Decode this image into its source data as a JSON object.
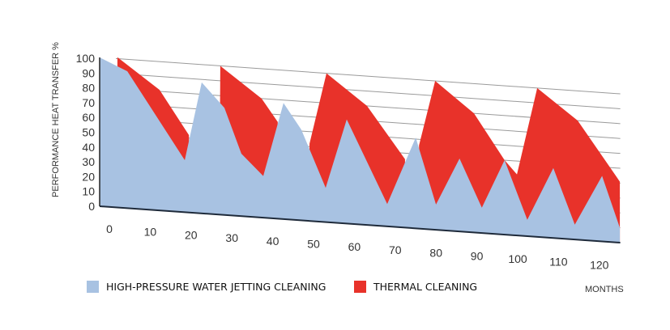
{
  "chart_data": {
    "type": "area",
    "title": "",
    "xlabel": "MONTHS",
    "ylabel": "PERFORMANCE HEAT TRANSFER %",
    "ylim": [
      0,
      100
    ],
    "xlim": [
      0,
      126
    ],
    "x_ticks": [
      0,
      10,
      20,
      30,
      40,
      50,
      60,
      70,
      80,
      90,
      100,
      110,
      120
    ],
    "y_ticks": [
      0,
      10,
      20,
      30,
      40,
      50,
      60,
      70,
      80,
      90,
      100
    ],
    "grid": true,
    "perspective": "3d-tilted",
    "legend_placement": "bottom",
    "series": [
      {
        "name": "THERMAL CLEANING",
        "color": "#e8322a",
        "points": [
          [
            4.2,
            0
          ],
          [
            4.3,
            101
          ],
          [
            14.5,
            81
          ],
          [
            21.6,
            52
          ],
          [
            21.8,
            10
          ],
          [
            29.0,
            10
          ],
          [
            29.2,
            100
          ],
          [
            39.2,
            80
          ],
          [
            43.1,
            65
          ],
          [
            43.2,
            10
          ],
          [
            50.6,
            10
          ],
          [
            50.8,
            52
          ],
          [
            54.9,
            100
          ],
          [
            64.7,
            80
          ],
          [
            73.9,
            46
          ],
          [
            74.0,
            10
          ],
          [
            77.2,
            10
          ],
          [
            77.3,
            56
          ],
          [
            81.2,
            100
          ],
          [
            90.6,
            80
          ],
          [
            98,
            50
          ],
          [
            101,
            41
          ],
          [
            105.9,
            100
          ],
          [
            115.7,
            80
          ],
          [
            125.9,
            41
          ],
          [
            125.9,
            0
          ]
        ]
      },
      {
        "name": "HIGH-PRESSURE WATER JETTING CLEANING",
        "color": "#a8c2e2",
        "points": [
          [
            0,
            100
          ],
          [
            6.7,
            92
          ],
          [
            20.6,
            35
          ],
          [
            24.7,
            88
          ],
          [
            30.2,
            72
          ],
          [
            34.3,
            42
          ],
          [
            39.6,
            28
          ],
          [
            44.5,
            78
          ],
          [
            48.8,
            61
          ],
          [
            54.7,
            23
          ],
          [
            59.8,
            70
          ],
          [
            69.6,
            15
          ],
          [
            76.5,
            61
          ],
          [
            81.4,
            17
          ],
          [
            87.1,
            49
          ],
          [
            92.5,
            17
          ],
          [
            98,
            50
          ],
          [
            103.5,
            11
          ],
          [
            109.8,
            47
          ],
          [
            115,
            10
          ],
          [
            121.6,
            44
          ],
          [
            125.9,
            10
          ]
        ]
      }
    ]
  }
}
